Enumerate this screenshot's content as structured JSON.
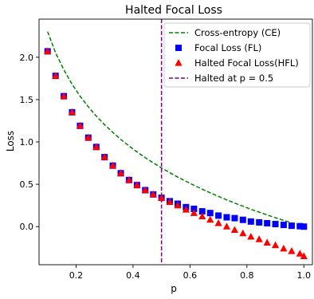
{
  "chart_data": {
    "type": "line",
    "title": "Halted Focal Loss",
    "xlabel": "p",
    "ylabel": "Loss",
    "xlim": [
      0.07,
      1.03
    ],
    "ylim": [
      -0.45,
      2.45
    ],
    "x_ticks": [
      0.2,
      0.4,
      0.6,
      0.8,
      1.0
    ],
    "x_tick_labels": [
      "0.2",
      "0.4",
      "0.6",
      "0.8",
      "1.0"
    ],
    "y_ticks": [
      0.0,
      0.5,
      1.0,
      1.5,
      2.0
    ],
    "y_tick_labels": [
      "0.0",
      "0.5",
      "1.0",
      "1.5",
      "2.0"
    ],
    "grid": false,
    "legend_position": "top-right",
    "x": [
      0.1,
      0.128,
      0.157,
      0.186,
      0.214,
      0.243,
      0.271,
      0.3,
      0.329,
      0.357,
      0.386,
      0.414,
      0.443,
      0.471,
      0.5,
      0.529,
      0.557,
      0.586,
      0.614,
      0.643,
      0.671,
      0.7,
      0.729,
      0.757,
      0.786,
      0.814,
      0.843,
      0.871,
      0.9,
      0.929,
      0.957,
      0.986,
      1.0
    ],
    "series": [
      {
        "name": "Cross-entropy (CE)",
        "style": "dashed-line",
        "color": "#008000",
        "values": [
          2.303,
          2.053,
          1.852,
          1.682,
          1.541,
          1.415,
          1.305,
          1.204,
          1.112,
          1.03,
          0.952,
          0.882,
          0.814,
          0.753,
          0.693,
          0.637,
          0.585,
          0.535,
          0.488,
          0.442,
          0.399,
          0.357,
          0.316,
          0.278,
          0.241,
          0.205,
          0.171,
          0.138,
          0.105,
          0.074,
          0.044,
          0.014,
          0.0
        ]
      },
      {
        "name": "Focal Loss (FL)",
        "style": "square-markers",
        "color": "#0000ff",
        "values": [
          2.07,
          1.78,
          1.54,
          1.35,
          1.19,
          1.05,
          0.94,
          0.82,
          0.72,
          0.63,
          0.55,
          0.49,
          0.43,
          0.38,
          0.34,
          0.3,
          0.27,
          0.23,
          0.21,
          0.18,
          0.16,
          0.13,
          0.11,
          0.1,
          0.08,
          0.06,
          0.05,
          0.04,
          0.03,
          0.02,
          0.01,
          0.005,
          0.0
        ]
      },
      {
        "name": "Halted Focal Loss(HFL)",
        "style": "triangle-markers",
        "color": "#ff0000",
        "values": [
          2.07,
          1.78,
          1.54,
          1.35,
          1.19,
          1.05,
          0.94,
          0.82,
          0.72,
          0.63,
          0.55,
          0.49,
          0.43,
          0.38,
          0.34,
          0.29,
          0.25,
          0.2,
          0.16,
          0.12,
          0.08,
          0.04,
          0.0,
          -0.04,
          -0.08,
          -0.12,
          -0.15,
          -0.19,
          -0.22,
          -0.26,
          -0.29,
          -0.32,
          -0.35
        ]
      },
      {
        "name": "Halted at p = 0.5",
        "style": "vertical-dashed-line",
        "color": "#800080",
        "x_value": 0.5
      }
    ]
  }
}
